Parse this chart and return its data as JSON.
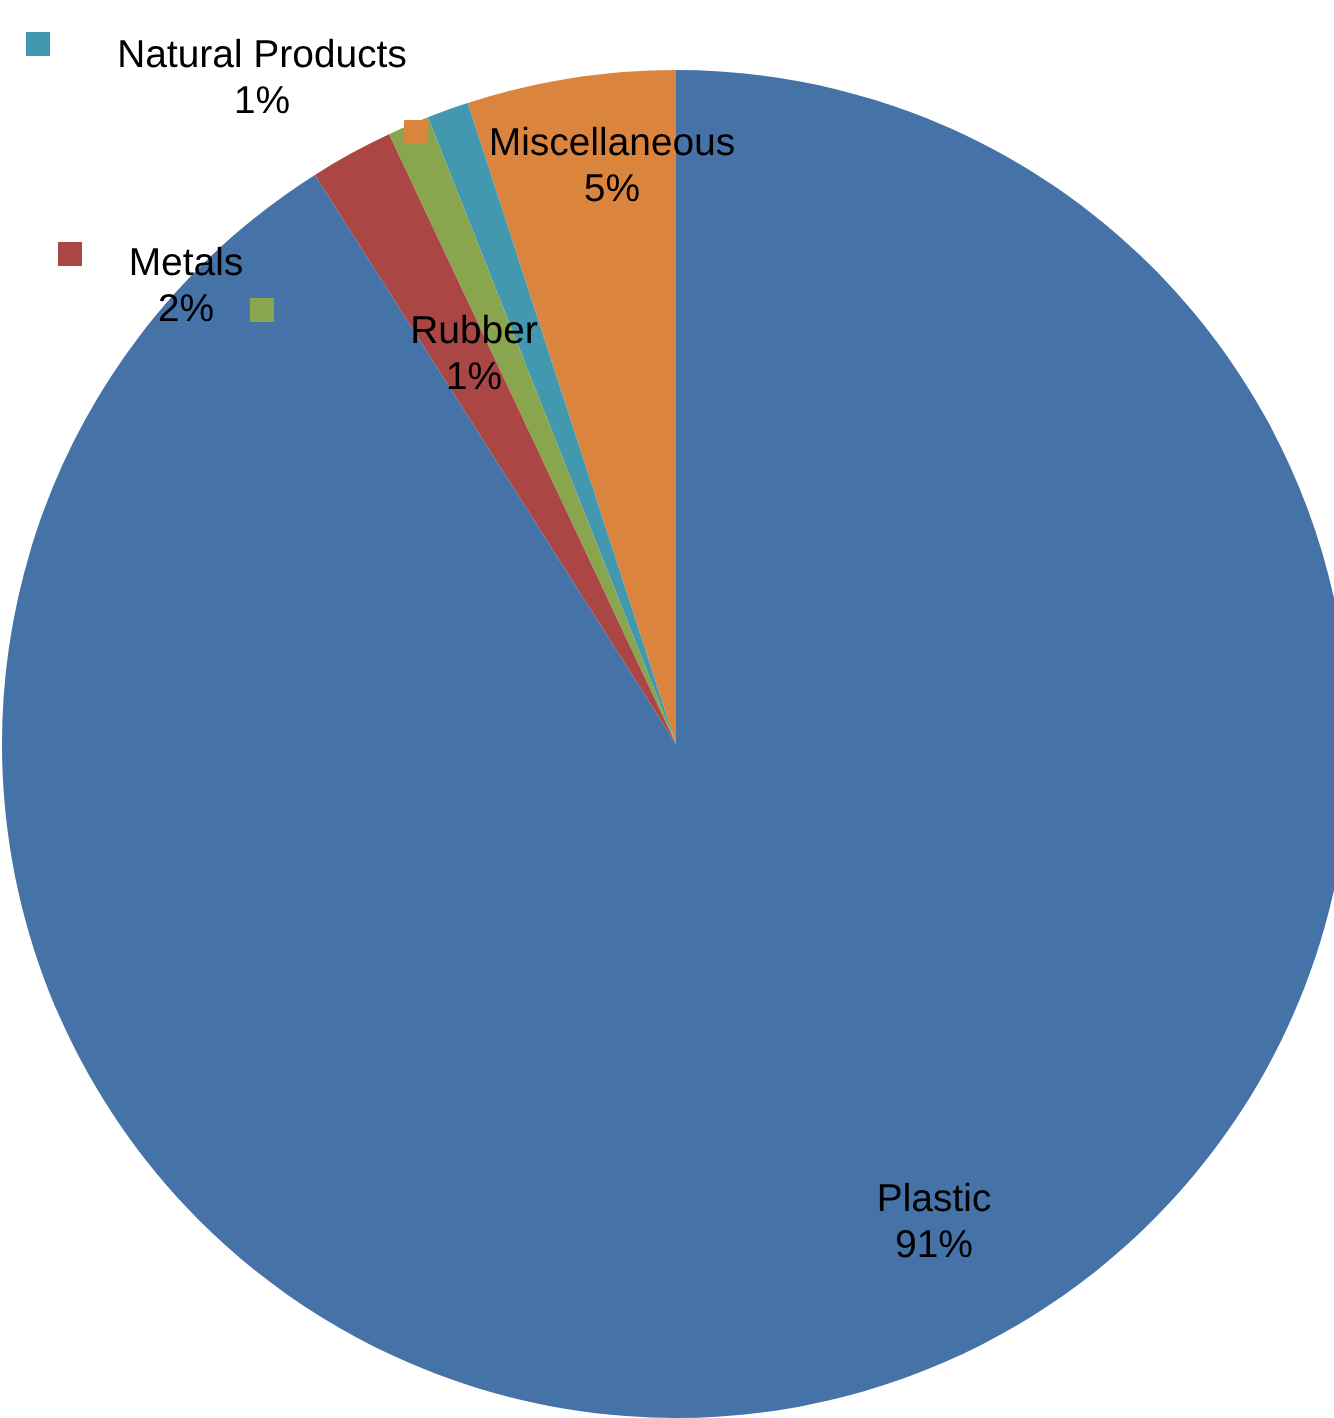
{
  "chart_data": {
    "type": "pie",
    "categories": [
      "Miscellaneous",
      "Natural Products",
      "Rubber",
      "Metals",
      "Plastic"
    ],
    "values": [
      5,
      1,
      1,
      2,
      91
    ],
    "colors": [
      "#db843d",
      "#4198af",
      "#89a54e",
      "#aa4643",
      "#4572a7"
    ],
    "value_labels": [
      "5%",
      "1%",
      "1%",
      "2%",
      "91%"
    ],
    "legend": "top left"
  }
}
